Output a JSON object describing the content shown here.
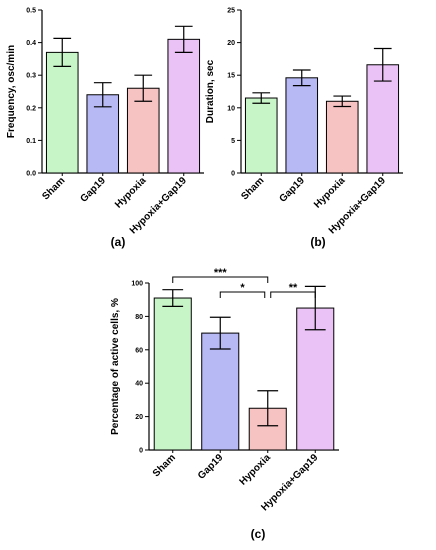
{
  "colors": {
    "Sham": "#c8f5c8",
    "Gap19": "#b7b9f5",
    "Hypoxia": "#f7c2c2",
    "Hypoxia+Gap19": "#eac2f5"
  },
  "chart_data": [
    {
      "id": "a",
      "type": "bar",
      "panel_label": "(a)",
      "ylabel": "Frequency, osc/min",
      "xlabel": "",
      "ylim": [
        0,
        0.5
      ],
      "yticks": [
        "0.0",
        "0.1",
        "0.2",
        "0.3",
        "0.4",
        "0.5"
      ],
      "categories": [
        "Sham",
        "Gap19",
        "Hypoxia",
        "Hypoxia+Gap19"
      ],
      "values": [
        0.37,
        0.24,
        0.26,
        0.41
      ],
      "errors": [
        0.043,
        0.037,
        0.04,
        0.04
      ],
      "grid": false,
      "significance": []
    },
    {
      "id": "b",
      "type": "bar",
      "panel_label": "(b)",
      "ylabel": "Duration, sec",
      "xlabel": "",
      "ylim": [
        0,
        25
      ],
      "yticks": [
        "0",
        "5",
        "10",
        "15",
        "20",
        "25"
      ],
      "categories": [
        "Sham",
        "Gap19",
        "Hypoxia",
        "Hypoxia+Gap19"
      ],
      "values": [
        11.5,
        14.6,
        11.0,
        16.6
      ],
      "errors": [
        0.8,
        1.2,
        0.8,
        2.5
      ],
      "grid": false,
      "significance": []
    },
    {
      "id": "c",
      "type": "bar",
      "panel_label": "(c)",
      "ylabel": "Percentage of active cells, %",
      "xlabel": "",
      "ylim": [
        0,
        100
      ],
      "yticks": [
        "0",
        "20",
        "40",
        "60",
        "80",
        "100"
      ],
      "categories": [
        "Sham",
        "Gap19",
        "Hypoxia",
        "Hypoxia+Gap19"
      ],
      "values": [
        91,
        70,
        25,
        85
      ],
      "errors": [
        5,
        9.5,
        10.5,
        13
      ],
      "grid": false,
      "significance": [
        {
          "from": "Sham",
          "to": "Hypoxia",
          "label": "***"
        },
        {
          "from": "Gap19",
          "to": "Hypoxia",
          "label": "*"
        },
        {
          "from": "Hypoxia",
          "to": "Hypoxia+Gap19",
          "label": "**"
        }
      ]
    }
  ]
}
